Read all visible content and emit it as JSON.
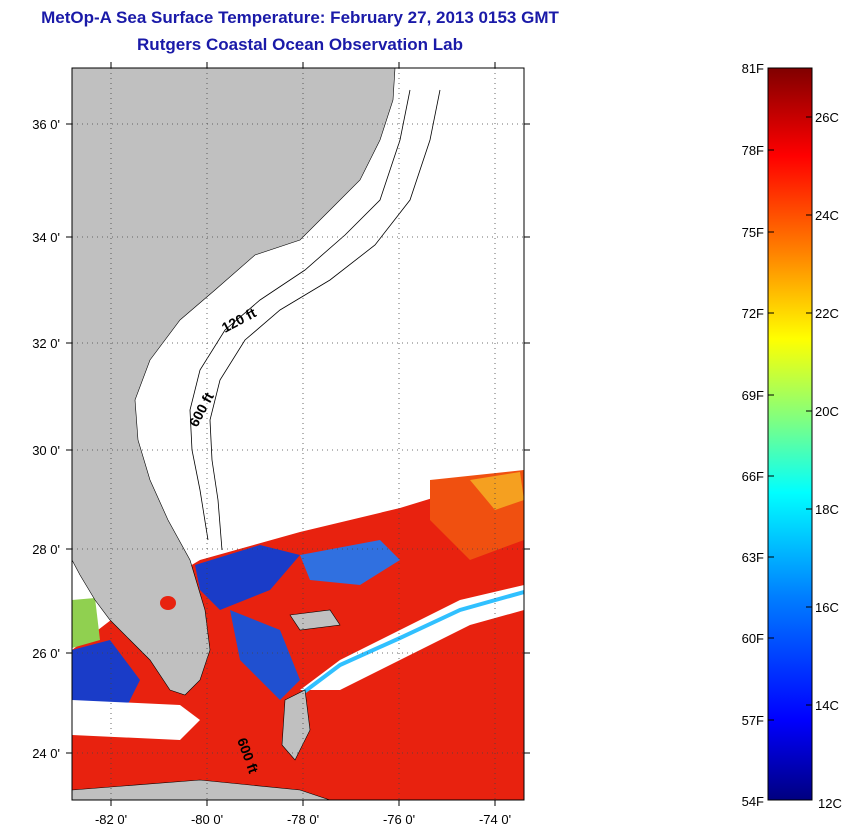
{
  "title": {
    "line1": "MetOp-A Sea Surface Temperature:  February 27, 2013 0153 GMT",
    "line2": "Rutgers Coastal Ocean Observation Lab"
  },
  "map": {
    "lon_ticks": [
      "-82 0'",
      "-80 0'",
      "-78 0'",
      "-76 0'",
      "-74 0'"
    ],
    "lat_ticks": [
      "36 0'",
      "34 0'",
      "32 0'",
      "30 0'",
      "28 0'",
      "26 0'",
      "24 0'"
    ],
    "contour_labels": [
      "120 ft",
      "600 ft",
      "600 ft"
    ],
    "land_color": "#c0c0c0"
  },
  "colorbar": {
    "f_labels": [
      "81F",
      "78F",
      "75F",
      "72F",
      "69F",
      "66F",
      "63F",
      "60F",
      "57F",
      "54F"
    ],
    "c_labels": [
      "26C",
      "24C",
      "22C",
      "20C",
      "18C",
      "16C",
      "14C",
      "12C"
    ],
    "colors": [
      "#800000",
      "#ff0000",
      "#ff8000",
      "#ffff00",
      "#80ff80",
      "#00ffff",
      "#0080ff",
      "#0000ff",
      "#000080"
    ]
  }
}
